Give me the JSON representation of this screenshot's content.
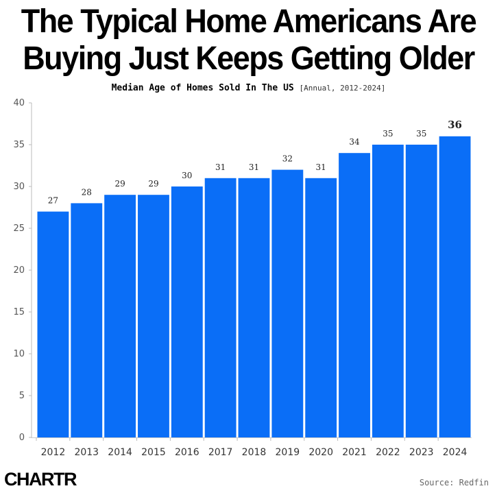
{
  "title_line1": "The Typical Home Americans Are",
  "title_line2": "Buying Just Keeps Getting Older",
  "subtitle": "Median Age of Homes Sold In The US",
  "subtitle_note": "[Annual, 2012-2024]",
  "source": "Source: Redfin",
  "logo": "CHARTR",
  "colors": {
    "bar": "#0a6ef7",
    "axis_text": "#555555",
    "label_text": "#222222"
  },
  "chart_data": {
    "type": "bar",
    "categories": [
      "2012",
      "2013",
      "2014",
      "2015",
      "2016",
      "2017",
      "2018",
      "2019",
      "2020",
      "2021",
      "2022",
      "2023",
      "2024"
    ],
    "values": [
      27,
      28,
      29,
      29,
      30,
      31,
      31,
      32,
      31,
      34,
      35,
      35,
      36
    ],
    "title": "",
    "xlabel": "",
    "ylabel": "",
    "ylim": [
      0,
      40
    ],
    "yticks": [
      0,
      5,
      10,
      15,
      20,
      25,
      30,
      35,
      40
    ],
    "grid": false,
    "highlight_last_label": true
  }
}
